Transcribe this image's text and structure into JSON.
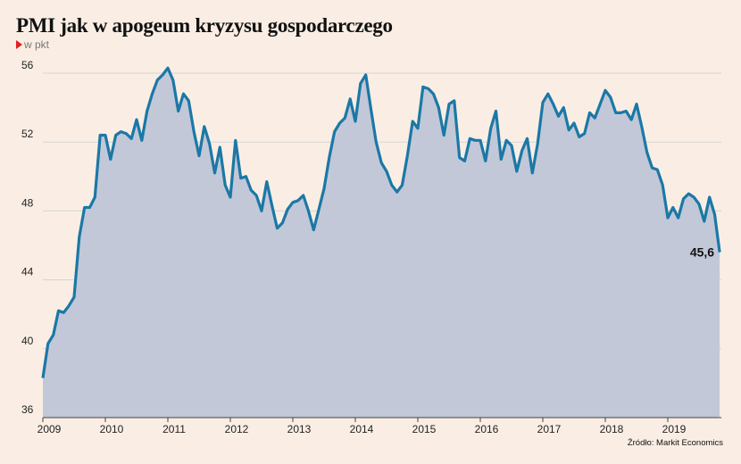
{
  "chart_data": {
    "type": "area",
    "title": "PMI jak w apogeum kryzysu gospodarczego",
    "unit_label": "w pkt",
    "source": "Źródło: Markit Economics",
    "ylim": [
      36,
      58
    ],
    "yticks": [
      36,
      40,
      44,
      48,
      52,
      56
    ],
    "xlim": [
      2009.0,
      2019.83
    ],
    "xticks": [
      2009,
      2010,
      2011,
      2012,
      2013,
      2014,
      2015,
      2016,
      2017,
      2018,
      2019
    ],
    "grid": true,
    "last_value_label": "45,6",
    "series": [
      {
        "x": [
          2009.0,
          2009.083,
          2009.167,
          2009.25,
          2009.333,
          2009.417,
          2009.5,
          2009.583,
          2009.667,
          2009.75,
          2009.833,
          2009.917,
          2010.0,
          2010.083,
          2010.167,
          2010.25,
          2010.333,
          2010.417,
          2010.5,
          2010.583,
          2010.667,
          2010.75,
          2010.833,
          2010.917,
          2011.0,
          2011.083,
          2011.167,
          2011.25,
          2011.333,
          2011.417,
          2011.5,
          2011.583,
          2011.667,
          2011.75,
          2011.833,
          2011.917,
          2012.0,
          2012.083,
          2012.167,
          2012.25,
          2012.333,
          2012.417,
          2012.5,
          2012.583,
          2012.667,
          2012.75,
          2012.833,
          2012.917,
          2013.0,
          2013.083,
          2013.167,
          2013.25,
          2013.333,
          2013.417,
          2013.5,
          2013.583,
          2013.667,
          2013.75,
          2013.833,
          2013.917,
          2014.0,
          2014.083,
          2014.167,
          2014.25,
          2014.333,
          2014.417,
          2014.5,
          2014.583,
          2014.667,
          2014.75,
          2014.833,
          2014.917,
          2015.0,
          2015.083,
          2015.167,
          2015.25,
          2015.333,
          2015.417,
          2015.5,
          2015.583,
          2015.667,
          2015.75,
          2015.833,
          2015.917,
          2016.0,
          2016.083,
          2016.167,
          2016.25,
          2016.333,
          2016.417,
          2016.5,
          2016.583,
          2016.667,
          2016.75,
          2016.833,
          2016.917,
          2017.0,
          2017.083,
          2017.167,
          2017.25,
          2017.333,
          2017.417,
          2017.5,
          2017.583,
          2017.667,
          2017.75,
          2017.833,
          2017.917,
          2018.0,
          2018.083,
          2018.167,
          2018.25,
          2018.333,
          2018.417,
          2018.5,
          2018.583,
          2018.667,
          2018.75,
          2018.833,
          2018.917,
          2019.0,
          2019.083,
          2019.167,
          2019.25,
          2019.333,
          2019.417,
          2019.5,
          2019.583,
          2019.667,
          2019.75,
          2019.83
        ],
        "values": [
          38.3,
          40.3,
          40.8,
          42.2,
          42.1,
          42.5,
          43.0,
          46.5,
          48.2,
          48.2,
          48.8,
          52.4,
          52.4,
          51.0,
          52.4,
          52.6,
          52.5,
          52.2,
          53.3,
          52.1,
          53.8,
          54.8,
          55.6,
          55.9,
          56.3,
          55.6,
          53.8,
          54.8,
          54.4,
          52.6,
          51.2,
          52.9,
          51.9,
          50.2,
          51.7,
          49.5,
          48.8,
          52.1,
          49.9,
          50.0,
          49.2,
          48.9,
          48.0,
          49.7,
          48.3,
          47.0,
          47.3,
          48.1,
          48.5,
          48.6,
          48.9,
          48.0,
          46.9,
          48.1,
          49.3,
          51.1,
          52.6,
          53.1,
          53.4,
          54.5,
          53.2,
          55.4,
          55.9,
          53.9,
          52.0,
          50.8,
          50.3,
          49.5,
          49.1,
          49.5,
          51.2,
          53.2,
          52.8,
          55.2,
          55.1,
          54.8,
          54.0,
          52.4,
          54.2,
          54.4,
          51.1,
          50.9,
          52.2,
          52.1,
          52.1,
          50.9,
          52.8,
          53.8,
          51.0,
          52.1,
          51.8,
          50.3,
          51.5,
          52.2,
          50.2,
          51.9,
          54.3,
          54.8,
          54.2,
          53.5,
          54.0,
          52.7,
          53.1,
          52.3,
          52.5,
          53.7,
          53.4,
          54.2,
          55.0,
          54.6,
          53.7,
          53.7,
          53.8,
          53.3,
          54.2,
          52.9,
          51.4,
          50.5,
          50.4,
          49.5,
          47.6,
          48.2,
          47.6,
          48.7,
          49.0,
          48.8,
          48.4,
          47.4,
          48.8,
          47.8,
          45.6
        ]
      }
    ],
    "colors": {
      "line": "#1b78a6",
      "area": "#c2c8d8",
      "grid": "#d4d4d4",
      "background": "#faeee4",
      "unit_marker": "#e02020"
    }
  }
}
